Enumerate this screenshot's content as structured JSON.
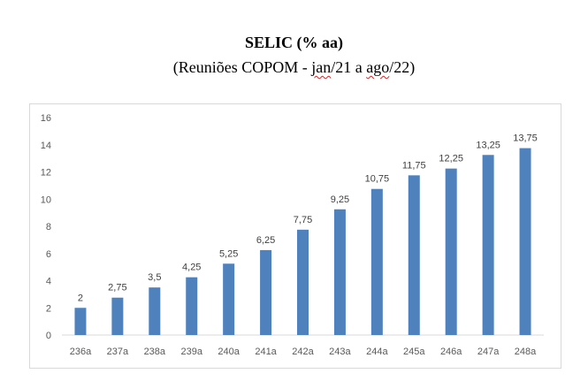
{
  "title": "SELIC (% aa)",
  "subtitle": {
    "prefix": "(Reuniões COPOM  - ",
    "w1": "jan",
    "mid": "/21 a ",
    "w2": "ago",
    "suffix": "/22)"
  },
  "colors": {
    "bar": "#4f81bd",
    "axis": "#d9d9d9",
    "text": "#595959"
  },
  "chart_data": {
    "type": "bar",
    "categories": [
      "236a",
      "237a",
      "238a",
      "239a",
      "240a",
      "241a",
      "242a",
      "243a",
      "244a",
      "245a",
      "246a",
      "247a",
      "248a"
    ],
    "values": [
      2,
      2.75,
      3.5,
      4.25,
      5.25,
      6.25,
      7.75,
      9.25,
      10.75,
      11.75,
      12.25,
      13.25,
      13.75
    ],
    "data_labels": [
      "2",
      "2,75",
      "3,5",
      "4,25",
      "5,25",
      "6,25",
      "7,75",
      "9,25",
      "10,75",
      "11,75",
      "12,25",
      "13,25",
      "13,75"
    ],
    "y_ticks": [
      "0",
      "2",
      "4",
      "6",
      "8",
      "10",
      "12",
      "14",
      "16"
    ],
    "ylim": [
      0,
      16
    ],
    "grid": false,
    "legend": "none"
  }
}
